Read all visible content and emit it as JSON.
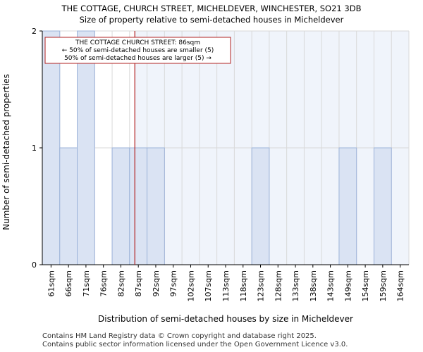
{
  "chart_data": {
    "type": "bar",
    "title_line1": "THE COTTAGE, CHURCH STREET, MICHELDEVER, WINCHESTER, SO21 3DB",
    "title_line2": "Size of property relative to semi-detached houses in Micheldever",
    "xlabel": "Distribution of semi-detached houses by size in Micheldever",
    "ylabel": "Number of semi-detached properties",
    "categories": [
      "61sqm",
      "66sqm",
      "71sqm",
      "76sqm",
      "82sqm",
      "87sqm",
      "92sqm",
      "97sqm",
      "102sqm",
      "107sqm",
      "113sqm",
      "118sqm",
      "123sqm",
      "128sqm",
      "133sqm",
      "138sqm",
      "143sqm",
      "149sqm",
      "154sqm",
      "159sqm",
      "164sqm"
    ],
    "values": [
      2,
      1,
      2,
      0,
      1,
      1,
      1,
      0,
      0,
      0,
      0,
      0,
      1,
      0,
      0,
      0,
      0,
      1,
      0,
      1,
      0
    ],
    "ylim": [
      0,
      2
    ],
    "yticks": [
      0,
      1,
      2
    ],
    "grid": true,
    "bar_color": "#dae3f3",
    "bar_edge_color": "#9db3d9",
    "highlight_color": "#f0f4fb",
    "marker": {
      "value_sqm": 86,
      "color": "#b22222",
      "annotation_lines": [
        "THE COTTAGE CHURCH STREET: 86sqm",
        "← 50% of semi-detached houses are smaller (5)",
        "50% of semi-detached houses are larger (5) →"
      ]
    }
  },
  "footer": {
    "line1": "Contains HM Land Registry data © Crown copyright and database right 2025.",
    "line2": "Contains public sector information licensed under the Open Government Licence v3.0."
  }
}
